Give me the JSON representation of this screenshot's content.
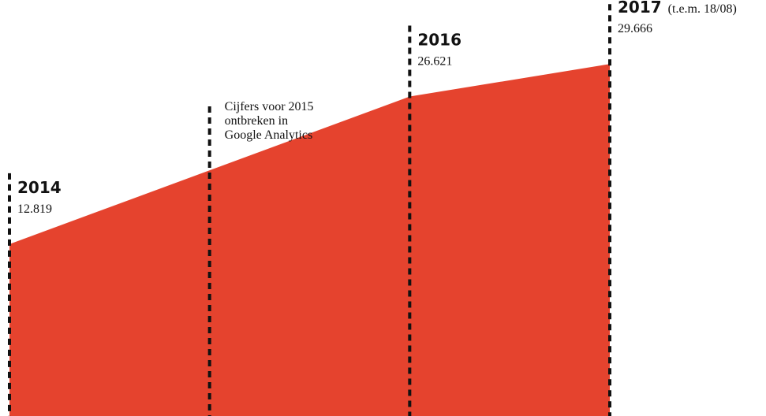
{
  "chart_data": {
    "type": "area",
    "x": [
      2014,
      2016,
      2017
    ],
    "values": [
      12819,
      26621,
      29666
    ],
    "value_labels": [
      "12.819",
      "26.621",
      "29.666"
    ],
    "color": "#e5432e",
    "xlim": [
      2014,
      2017
    ],
    "ylim": [
      -3250,
      35650
    ],
    "annotations": [
      {
        "x": 2015,
        "lines": [
          "Cijfers voor 2015",
          "ontbreken in",
          "Google Analytics"
        ]
      },
      {
        "x": 2017,
        "text": "(t.e.m. 18/08)"
      }
    ]
  }
}
